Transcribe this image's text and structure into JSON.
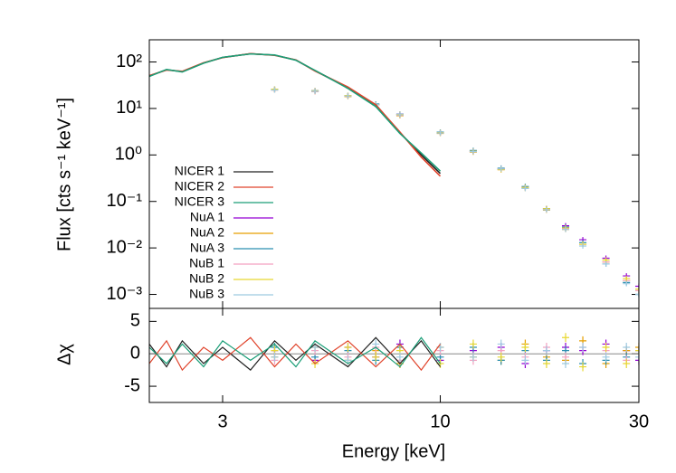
{
  "chart_data": {
    "type": "line",
    "x_label": "Energy [keV]",
    "y_label": "Flux [cts s⁻¹ keV⁻¹]",
    "residual_label": "Δχ",
    "log_x": true,
    "log_y": true,
    "legend": "left",
    "xlim": [
      2,
      30
    ],
    "xticks": [
      3,
      10,
      30
    ],
    "ylim": [
      0.0005,
      300
    ],
    "yticks": [
      {
        "value": 0.001,
        "label": "10⁻³"
      },
      {
        "value": 0.01,
        "label": "10⁻²"
      },
      {
        "value": 0.1,
        "label": "10⁻¹"
      },
      {
        "value": 1,
        "label": "10⁰"
      },
      {
        "value": 10,
        "label": "10¹"
      },
      {
        "value": 100,
        "label": "10²"
      }
    ],
    "residual_ylim": [
      -7.5,
      7
    ],
    "residual_yticks": [
      -5,
      0,
      5
    ],
    "series": [
      {
        "name": "NICER 1",
        "color": "#222222",
        "style": "line",
        "x": [
          2.0,
          2.2,
          2.4,
          2.7,
          3.0,
          3.5,
          4.0,
          4.5,
          5.0,
          6.0,
          7.0,
          8.0,
          9.0,
          10.0
        ],
        "values": [
          50,
          68,
          62,
          95,
          125,
          150,
          140,
          110,
          65,
          28,
          12,
          3,
          1,
          0.4
        ],
        "residuals": [
          1.5,
          -2,
          2,
          -1.5,
          1,
          -2.5,
          2,
          -1,
          1.5,
          -2,
          2.5,
          -1.5,
          2,
          -2
        ]
      },
      {
        "name": "NICER 2",
        "color": "#e0442c",
        "style": "line",
        "x": [
          2.0,
          2.2,
          2.4,
          2.7,
          3.0,
          3.5,
          4.0,
          4.5,
          5.0,
          6.0,
          7.0,
          8.0,
          9.0,
          10.0
        ],
        "values": [
          51,
          67,
          63,
          96,
          124,
          151,
          139,
          111,
          64,
          29,
          12,
          3.1,
          0.9,
          0.35
        ],
        "residuals": [
          -1.5,
          2,
          -2.5,
          1,
          -1,
          2.5,
          -2,
          1.5,
          -1.5,
          2,
          -2,
          1.5,
          -2.5,
          1.5
        ]
      },
      {
        "name": "NICER 3",
        "color": "#1a9e77",
        "style": "line",
        "x": [
          2.0,
          2.2,
          2.4,
          2.7,
          3.0,
          3.5,
          4.0,
          4.5,
          5.0,
          6.0,
          7.0,
          8.0,
          9.0,
          10.0
        ],
        "values": [
          49,
          69,
          61,
          94,
          126,
          149,
          141,
          109,
          66,
          27,
          11,
          2.9,
          1.1,
          0.45
        ],
        "residuals": [
          1,
          -1.5,
          1.5,
          -2,
          2,
          -1,
          1.5,
          -2,
          2,
          -1.5,
          1,
          -2,
          2.5,
          -1.5
        ]
      },
      {
        "name": "NuA 1",
        "color": "#9400d3",
        "style": "points",
        "x": [
          4,
          5,
          6,
          7,
          8,
          10,
          12,
          14,
          16,
          18,
          20,
          22,
          25,
          28,
          30
        ],
        "values": [
          26,
          24,
          19,
          12,
          7.5,
          3,
          1.2,
          0.5,
          0.2,
          0.07,
          0.03,
          0.015,
          0.006,
          0.0025,
          0.0015
        ],
        "residuals": [
          0.5,
          -1,
          1,
          -0.5,
          1.5,
          -1,
          0.5,
          1,
          -1.5,
          0.5,
          1,
          0.5,
          1.5,
          0.5,
          -1
        ]
      },
      {
        "name": "NuA 2",
        "color": "#e69f00",
        "style": "points",
        "x": [
          4,
          5,
          6,
          7,
          8,
          10,
          12,
          14,
          16,
          18,
          20,
          22,
          25,
          28,
          30
        ],
        "values": [
          25,
          23,
          18,
          12,
          7,
          2.9,
          1.15,
          0.48,
          0.19,
          0.065,
          0.025,
          0.012,
          0.005,
          0.002,
          0.0012
        ],
        "residuals": [
          -0.5,
          1,
          -1,
          0.5,
          -1.5,
          1,
          -0.5,
          -1,
          1.5,
          -0.5,
          -1,
          2,
          -1.5,
          0.5,
          1
        ]
      },
      {
        "name": "NuA 3",
        "color": "#2a8fb0",
        "style": "points",
        "x": [
          4,
          5,
          6,
          7,
          8,
          10,
          12,
          14,
          16,
          18,
          20,
          22,
          25,
          28,
          30
        ],
        "values": [
          26,
          24,
          19,
          12.5,
          7.5,
          3.1,
          1.25,
          0.52,
          0.21,
          0.07,
          0.028,
          0.013,
          0.0045,
          0.0018,
          0.001
        ],
        "residuals": [
          1,
          -0.5,
          0.5,
          -1,
          1,
          -0.5,
          1,
          -1,
          0.5,
          -1,
          0.5,
          -1.5,
          -1,
          -0.5,
          0.5
        ]
      },
      {
        "name": "NuB 1",
        "color": "#f4a0c0",
        "style": "points",
        "x": [
          4,
          5,
          6,
          7,
          8,
          10,
          12,
          14,
          16,
          18,
          20,
          22,
          25,
          28,
          30
        ],
        "values": [
          25,
          23,
          18.5,
          12,
          7.2,
          3,
          1.2,
          0.5,
          0.2,
          0.068,
          0.026,
          0.012,
          0.005,
          0.002,
          0.0012
        ],
        "residuals": [
          -1,
          0.5,
          -0.5,
          1,
          -1,
          0.5,
          -1,
          0.5,
          -0.5,
          1,
          -0.5,
          1,
          0.5,
          -1,
          0.5
        ]
      },
      {
        "name": "NuB 2",
        "color": "#e8d830",
        "style": "points",
        "x": [
          4,
          5,
          6,
          7,
          8,
          10,
          12,
          14,
          16,
          18,
          20,
          22,
          25,
          28,
          30
        ],
        "values": [
          26,
          24,
          19,
          12,
          7.4,
          3,
          1.2,
          0.49,
          0.2,
          0.07,
          0.027,
          0.012,
          0.0055,
          0.0022,
          0.0013
        ],
        "residuals": [
          0.5,
          -1.5,
          1,
          -0.5,
          0.5,
          -1.5,
          1.5,
          -0.5,
          1,
          -1.5,
          2.5,
          -2,
          1,
          -1.5,
          0.5
        ]
      },
      {
        "name": "NuB 3",
        "color": "#9ecae1",
        "style": "points",
        "x": [
          4,
          5,
          6,
          7,
          8,
          10,
          12,
          14,
          16,
          18,
          20,
          22,
          25,
          28,
          30
        ],
        "values": [
          25,
          23.5,
          18.5,
          12,
          7.3,
          2.95,
          1.18,
          0.5,
          0.19,
          0.066,
          0.025,
          0.011,
          0.0045,
          0.0017,
          0.001
        ],
        "residuals": [
          -0.5,
          1,
          -1,
          1.5,
          -0.5,
          1,
          -0.5,
          1.5,
          -1,
          0.5,
          -1.5,
          1,
          -0.5,
          1,
          -0.5
        ]
      }
    ]
  }
}
